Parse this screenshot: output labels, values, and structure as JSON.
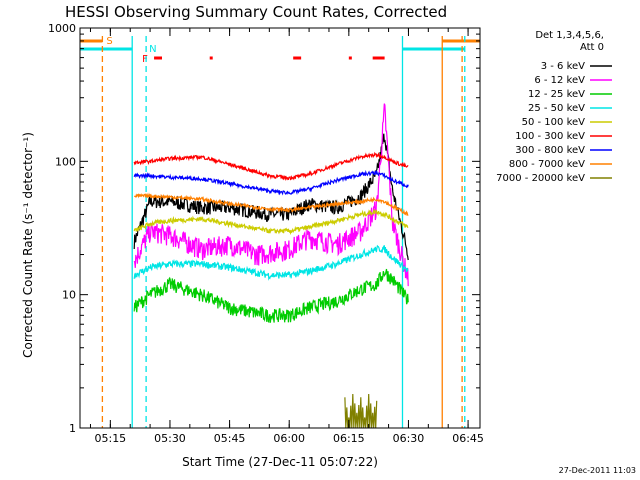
{
  "chart_data": {
    "type": "line",
    "title": "HESSI Observing Summary Count Rates, Corrected",
    "xlabel": "Start Time (27-Dec-11 05:07:22)",
    "ylabel": "Corrected Count Rate (s⁻¹ detector⁻¹)",
    "y_scale": "log",
    "ylim": [
      1,
      1000
    ],
    "xlim": [
      "05:07:22",
      "06:48:00"
    ],
    "x_ticks": [
      "05:15",
      "05:30",
      "05:45",
      "06:00",
      "06:15",
      "06:30",
      "06:45"
    ],
    "y_ticks": [
      "1",
      "10",
      "100",
      "1000"
    ],
    "legend_header": [
      "Det 1,3,4,5,6,",
      "Att 0"
    ],
    "legend_position": "right",
    "series": [
      {
        "name": "3 - 6 keV",
        "color": "#000000",
        "x": [
          "05:21",
          "05:25",
          "05:30",
          "05:38",
          "05:45",
          "05:55",
          "06:00",
          "06:05",
          "06:12",
          "06:18",
          "06:22",
          "06:24",
          "06:26",
          "06:30"
        ],
        "y": [
          25,
          50,
          50,
          45,
          45,
          40,
          40,
          48,
          45,
          55,
          80,
          160,
          60,
          20
        ]
      },
      {
        "name": "6 - 12 keV",
        "color": "#ff00ff",
        "x": [
          "05:21",
          "05:25",
          "05:30",
          "05:38",
          "05:45",
          "05:52",
          "06:00",
          "06:05",
          "06:12",
          "06:18",
          "06:22",
          "06:24",
          "06:26",
          "06:30"
        ],
        "y": [
          18,
          30,
          28,
          22,
          24,
          20,
          22,
          27,
          24,
          30,
          45,
          250,
          35,
          13
        ]
      },
      {
        "name": "12 - 25 keV",
        "color": "#00cc00",
        "x": [
          "05:21",
          "05:25",
          "05:30",
          "05:38",
          "05:45",
          "05:55",
          "06:00",
          "06:05",
          "06:12",
          "06:18",
          "06:22",
          "06:24",
          "06:26",
          "06:30"
        ],
        "y": [
          8,
          10,
          12,
          10,
          8,
          7,
          7,
          8,
          9,
          11,
          12,
          15,
          13,
          9
        ]
      },
      {
        "name": "25 - 50 keV",
        "color": "#00e5e5",
        "x": [
          "05:21",
          "05:25",
          "05:30",
          "05:38",
          "05:45",
          "05:55",
          "06:00",
          "06:05",
          "06:12",
          "06:18",
          "06:22",
          "06:24",
          "06:26",
          "06:30"
        ],
        "y": [
          14,
          16,
          17,
          17,
          16,
          14,
          14,
          15,
          17,
          20,
          22,
          22,
          19,
          15
        ]
      },
      {
        "name": "50 - 100 keV",
        "color": "#cccc00",
        "x": [
          "05:21",
          "05:25",
          "05:30",
          "05:38",
          "05:45",
          "05:55",
          "06:00",
          "06:05",
          "06:12",
          "06:18",
          "06:22",
          "06:24",
          "06:26",
          "06:30"
        ],
        "y": [
          30,
          34,
          36,
          37,
          34,
          30,
          30,
          32,
          36,
          40,
          42,
          40,
          37,
          32
        ]
      },
      {
        "name": "100 - 300 keV",
        "color": "#ff0000",
        "x": [
          "05:21",
          "05:25",
          "05:30",
          "05:38",
          "05:45",
          "05:55",
          "06:00",
          "06:05",
          "06:12",
          "06:18",
          "06:22",
          "06:24",
          "06:26",
          "06:30"
        ],
        "y": [
          98,
          100,
          105,
          108,
          95,
          78,
          75,
          80,
          95,
          108,
          112,
          108,
          100,
          90
        ]
      },
      {
        "name": "300 - 800 keV",
        "color": "#0000ff",
        "x": [
          "05:21",
          "05:25",
          "05:30",
          "05:38",
          "05:45",
          "05:55",
          "06:00",
          "06:05",
          "06:12",
          "06:18",
          "06:22",
          "06:24",
          "06:26",
          "06:30"
        ],
        "y": [
          78,
          78,
          76,
          74,
          68,
          60,
          58,
          62,
          72,
          80,
          82,
          78,
          72,
          65
        ]
      },
      {
        "name": "800 - 7000 keV",
        "color": "#ff8000",
        "x": [
          "05:21",
          "05:25",
          "05:30",
          "05:38",
          "05:45",
          "05:55",
          "06:00",
          "06:05",
          "06:12",
          "06:18",
          "06:22",
          "06:24",
          "06:26",
          "06:30"
        ],
        "y": [
          55,
          55,
          54,
          52,
          48,
          44,
          43,
          45,
          48,
          50,
          52,
          50,
          46,
          40
        ]
      },
      {
        "name": "7000 - 20000 keV",
        "color": "#808000",
        "x": [
          "06:14",
          "06:15",
          "06:16",
          "06:17",
          "06:18",
          "06:19",
          "06:20",
          "06:21",
          "06:22"
        ],
        "y": [
          1.7,
          1.2,
          1.8,
          1.3,
          1.7,
          1.2,
          1.8,
          1.3,
          1.6
        ]
      }
    ],
    "markers": [
      {
        "label": "S",
        "color": "#ff8000",
        "style": "dashed",
        "time": "05:13"
      },
      {
        "label": "N",
        "color": "#00e5e5",
        "style": "dashed",
        "time": "05:24"
      },
      {
        "label": "",
        "color": "#00e5e5",
        "style": "solid",
        "time": "05:20:30"
      },
      {
        "label": "",
        "color": "#00e5e5",
        "style": "solid",
        "time": "06:28:30"
      },
      {
        "label": "",
        "color": "#ff8000",
        "style": "solid",
        "time": "06:38:30"
      },
      {
        "label": "",
        "color": "#ff8000",
        "style": "dashed",
        "time": "06:43:30"
      },
      {
        "label": "",
        "color": "#00e5e5",
        "style": "dashed",
        "time": "06:44:10"
      }
    ],
    "flags": {
      "F_label": "F",
      "F_color": "#ff0000",
      "F_intervals": [
        [
          "05:26",
          "05:28"
        ],
        [
          "05:40",
          "05:40:30"
        ],
        [
          "06:01",
          "06:03"
        ],
        [
          "06:15",
          "06:15:40"
        ],
        [
          "06:21",
          "06:24"
        ]
      ],
      "S_bands": [
        [
          "05:07:22",
          "05:13"
        ],
        [
          "06:38:30",
          "06:48:00"
        ]
      ],
      "N_bands": [
        [
          "05:07:22",
          "05:20:30"
        ],
        [
          "06:28:30",
          "06:44:10"
        ]
      ]
    }
  },
  "timestamp": "27-Dec-2011 11:03"
}
